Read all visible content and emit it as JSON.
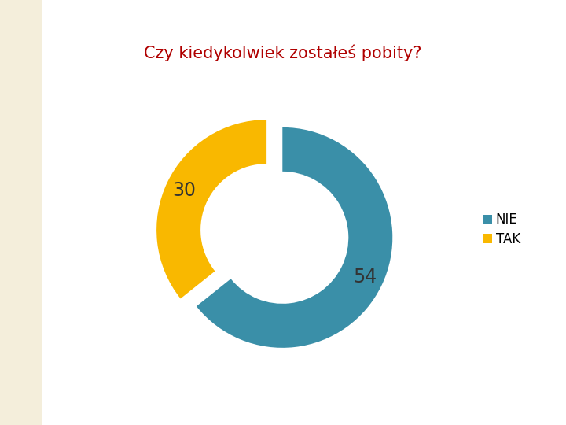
{
  "chart_data": {
    "type": "donut",
    "title": "Czy kiedykolwiek zostałeś pobity?",
    "categories": [
      "NIE",
      "TAK"
    ],
    "values": [
      54,
      30
    ],
    "colors": [
      "#3a8fa8",
      "#f9b800"
    ],
    "data_labels": true,
    "legend": "right"
  }
}
